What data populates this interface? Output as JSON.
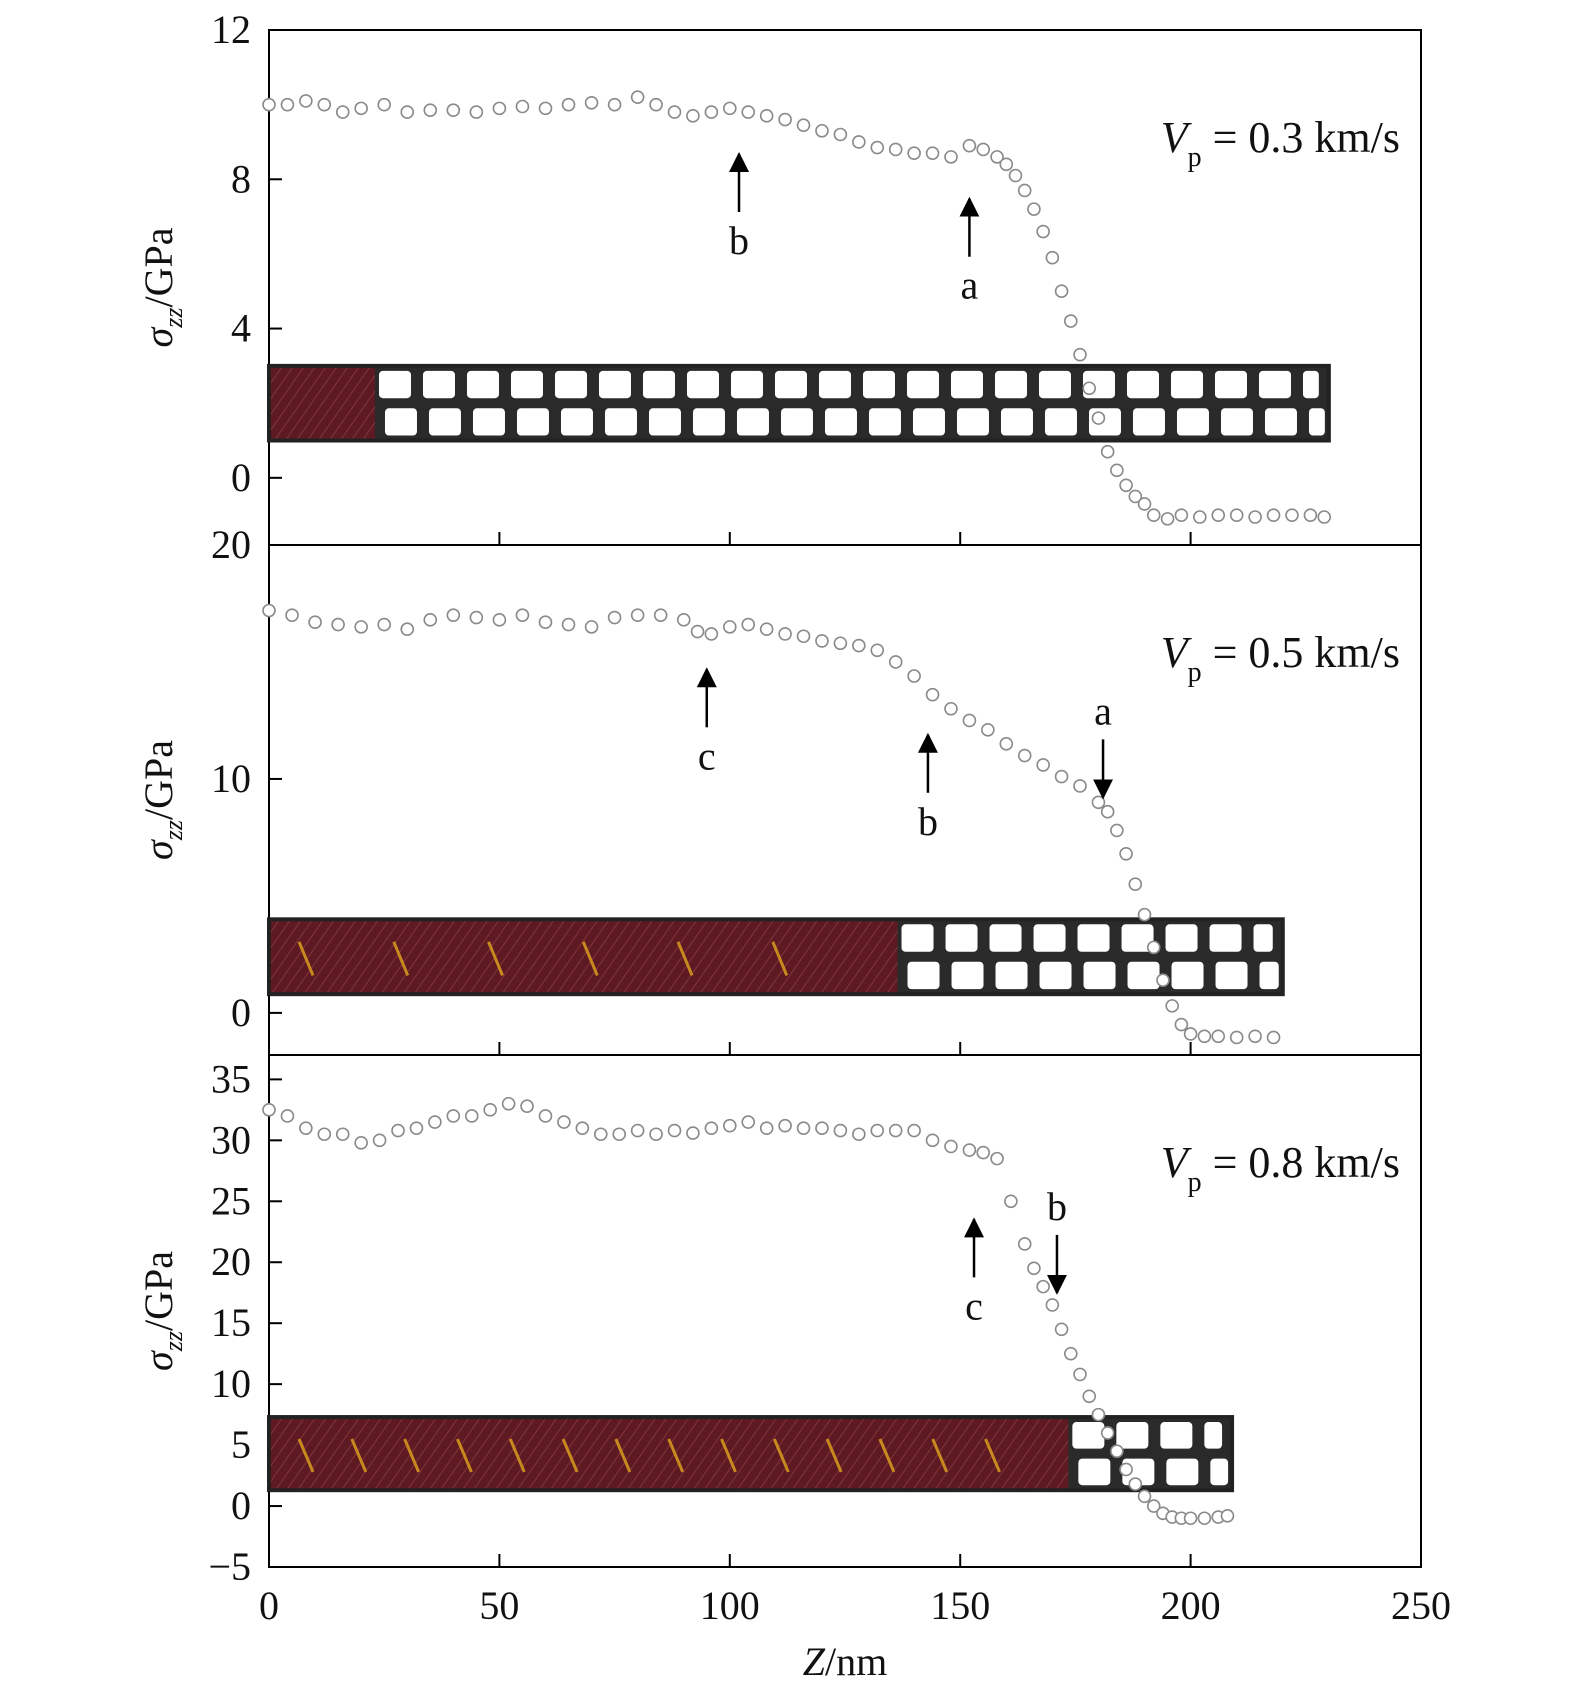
{
  "chart_data": [
    {
      "type": "scatter",
      "panel": "top",
      "velocity_label": {
        "symbol": "V",
        "subscript": "p",
        "text": " = 0.3 km/s"
      },
      "ylabel": {
        "symbol": "σ",
        "subscript": "zz",
        "unit": "/GPa"
      },
      "ylim": [
        -1.8,
        12
      ],
      "yticks": [
        "12",
        "8",
        "4",
        "0",
        "20"
      ],
      "ytick_values": [
        12,
        8,
        4,
        0,
        -1.8
      ],
      "xlim": [
        0,
        250
      ],
      "annotations": [
        {
          "label": "b",
          "x": 102,
          "y": 9.0,
          "direction": "up"
        },
        {
          "label": "a",
          "x": 152,
          "y": 7.8,
          "direction": "up"
        }
      ],
      "x": [
        0,
        4,
        8,
        12,
        16,
        20,
        25,
        30,
        35,
        40,
        45,
        50,
        55,
        60,
        65,
        70,
        75,
        80,
        84,
        88,
        92,
        96,
        100,
        104,
        108,
        112,
        116,
        120,
        124,
        128,
        132,
        136,
        140,
        144,
        148,
        152,
        155,
        158,
        160,
        162,
        164,
        166,
        168,
        170,
        172,
        174,
        176,
        178,
        180,
        182,
        184,
        186,
        188,
        190,
        192,
        195,
        198,
        202,
        206,
        210,
        214,
        218,
        222,
        226,
        229
      ],
      "y": [
        10.0,
        10.0,
        10.1,
        10.0,
        9.8,
        9.9,
        10.0,
        9.8,
        9.85,
        9.85,
        9.8,
        9.9,
        9.95,
        9.9,
        10.0,
        10.05,
        10.0,
        10.2,
        10.0,
        9.8,
        9.7,
        9.8,
        9.9,
        9.8,
        9.7,
        9.6,
        9.45,
        9.3,
        9.2,
        9.0,
        8.85,
        8.8,
        8.7,
        8.7,
        8.6,
        8.9,
        8.8,
        8.6,
        8.4,
        8.1,
        7.7,
        7.2,
        6.6,
        5.9,
        5.0,
        4.2,
        3.3,
        2.4,
        1.6,
        0.7,
        0.2,
        -0.2,
        -0.5,
        -0.7,
        -1.0,
        -1.1,
        -1.0,
        -1.05,
        -1.0,
        -1.0,
        -1.05,
        -1.0,
        -1.0,
        -1.0,
        -1.05
      ],
      "inset": {
        "x_end": 230,
        "pattern": "mostly_intact",
        "y_range": [
          1.0,
          3.0
        ]
      }
    },
    {
      "type": "scatter",
      "panel": "middle",
      "velocity_label": {
        "symbol": "V",
        "subscript": "p",
        "text": " = 0.5 km/s"
      },
      "ylabel": {
        "symbol": "σ",
        "subscript": "zz",
        "unit": "/GPa"
      },
      "ylim": [
        -1.8,
        20
      ],
      "yticks": [
        "10",
        "0"
      ],
      "ytick_values": [
        10,
        0
      ],
      "xlim": [
        0,
        250
      ],
      "annotations": [
        {
          "label": "c",
          "x": 95,
          "y": 15.2,
          "direction": "up"
        },
        {
          "label": "b",
          "x": 143,
          "y": 12.4,
          "direction": "up"
        },
        {
          "label": "a",
          "x": 181,
          "y": 8.7,
          "direction": "down"
        }
      ],
      "x": [
        0,
        5,
        10,
        15,
        20,
        25,
        30,
        35,
        40,
        45,
        50,
        55,
        60,
        65,
        70,
        75,
        80,
        85,
        90,
        93,
        96,
        100,
        104,
        108,
        112,
        116,
        120,
        124,
        128,
        132,
        136,
        140,
        144,
        148,
        152,
        156,
        160,
        164,
        168,
        172,
        176,
        180,
        182,
        184,
        186,
        188,
        190,
        192,
        194,
        196,
        198,
        200,
        203,
        206,
        210,
        214,
        218
      ],
      "y": [
        17.2,
        17.0,
        16.7,
        16.6,
        16.5,
        16.6,
        16.4,
        16.8,
        17.0,
        16.9,
        16.8,
        17.0,
        16.7,
        16.6,
        16.5,
        16.9,
        17.0,
        17.0,
        16.8,
        16.3,
        16.2,
        16.5,
        16.6,
        16.4,
        16.2,
        16.1,
        15.9,
        15.8,
        15.7,
        15.5,
        15.0,
        14.4,
        13.6,
        13.0,
        12.5,
        12.1,
        11.5,
        11.0,
        10.6,
        10.1,
        9.7,
        9.0,
        8.6,
        7.8,
        6.8,
        5.5,
        4.2,
        2.8,
        1.4,
        0.3,
        -0.5,
        -0.9,
        -1.0,
        -1.0,
        -1.05,
        -1.0,
        -1.05
      ],
      "inset": {
        "x_end": 220,
        "pattern": "half_transformed",
        "y_range": [
          0.8,
          4.0
        ]
      }
    },
    {
      "type": "scatter",
      "panel": "bottom",
      "velocity_label": {
        "symbol": "V",
        "subscript": "p",
        "text": " = 0.8 km/s"
      },
      "ylabel": {
        "symbol": "σ",
        "subscript": "zz",
        "unit": "/GPa"
      },
      "ylim": [
        -5,
        37
      ],
      "yticks": [
        "35",
        "30",
        "25",
        "20",
        "15",
        "10",
        "5",
        "0",
        "−5"
      ],
      "ytick_values": [
        35,
        30,
        25,
        20,
        15,
        10,
        5,
        0,
        -5
      ],
      "xlim": [
        0,
        250
      ],
      "xticks": [
        "0",
        "50",
        "100",
        "150",
        "200",
        "250"
      ],
      "xtick_values": [
        0,
        50,
        100,
        150,
        200,
        250
      ],
      "xlabel": {
        "symbol": "Z",
        "unit": "/nm"
      },
      "annotations": [
        {
          "label": "c",
          "x": 153,
          "y": 24.5,
          "direction": "up"
        },
        {
          "label": "b",
          "x": 171,
          "y": 16.5,
          "direction": "down"
        }
      ],
      "x": [
        0,
        4,
        8,
        12,
        16,
        20,
        24,
        28,
        32,
        36,
        40,
        44,
        48,
        52,
        56,
        60,
        64,
        68,
        72,
        76,
        80,
        84,
        88,
        92,
        96,
        100,
        104,
        108,
        112,
        116,
        120,
        124,
        128,
        132,
        136,
        140,
        144,
        148,
        152,
        155,
        158,
        161,
        164,
        166,
        168,
        170,
        172,
        174,
        176,
        178,
        180,
        182,
        184,
        186,
        188,
        190,
        192,
        194,
        196,
        198,
        200,
        203,
        206,
        208
      ],
      "y": [
        32.5,
        32.0,
        31.0,
        30.5,
        30.5,
        29.8,
        30.0,
        30.8,
        31.0,
        31.5,
        32.0,
        32.0,
        32.5,
        33.0,
        32.8,
        32.0,
        31.5,
        31.0,
        30.5,
        30.5,
        30.8,
        30.5,
        30.8,
        30.6,
        31.0,
        31.2,
        31.5,
        31.0,
        31.2,
        31.0,
        31.0,
        30.8,
        30.5,
        30.8,
        30.8,
        30.8,
        30.0,
        29.5,
        29.2,
        29.0,
        28.5,
        25.0,
        21.5,
        19.5,
        18.0,
        16.5,
        14.5,
        12.5,
        10.8,
        9.0,
        7.5,
        6.0,
        4.5,
        3.0,
        1.8,
        0.8,
        0.0,
        -0.6,
        -0.9,
        -1.0,
        -1.0,
        -1.0,
        -0.9,
        -0.8
      ],
      "inset": {
        "x_end": 209,
        "pattern": "mostly_transformed",
        "y_range": [
          1.3,
          7.3
        ]
      }
    }
  ]
}
